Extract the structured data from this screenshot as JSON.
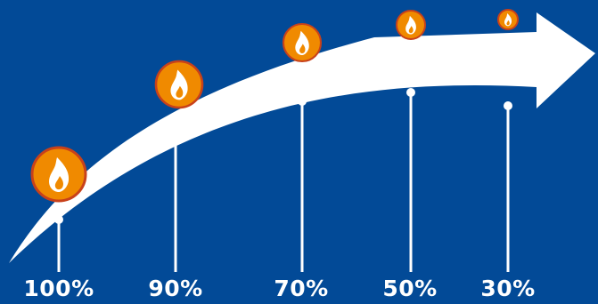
{
  "colors": {
    "background": "#024a97",
    "arrow": "#ffffff",
    "flame_circle": "#f08a00",
    "flame_ring": "#c8411a",
    "flame": "#ffffff"
  },
  "icon": "flame-icon",
  "steps": [
    {
      "label": "100%"
    },
    {
      "label": "90%"
    },
    {
      "label": "70%"
    },
    {
      "label": "50%"
    },
    {
      "label": "30%"
    }
  ]
}
